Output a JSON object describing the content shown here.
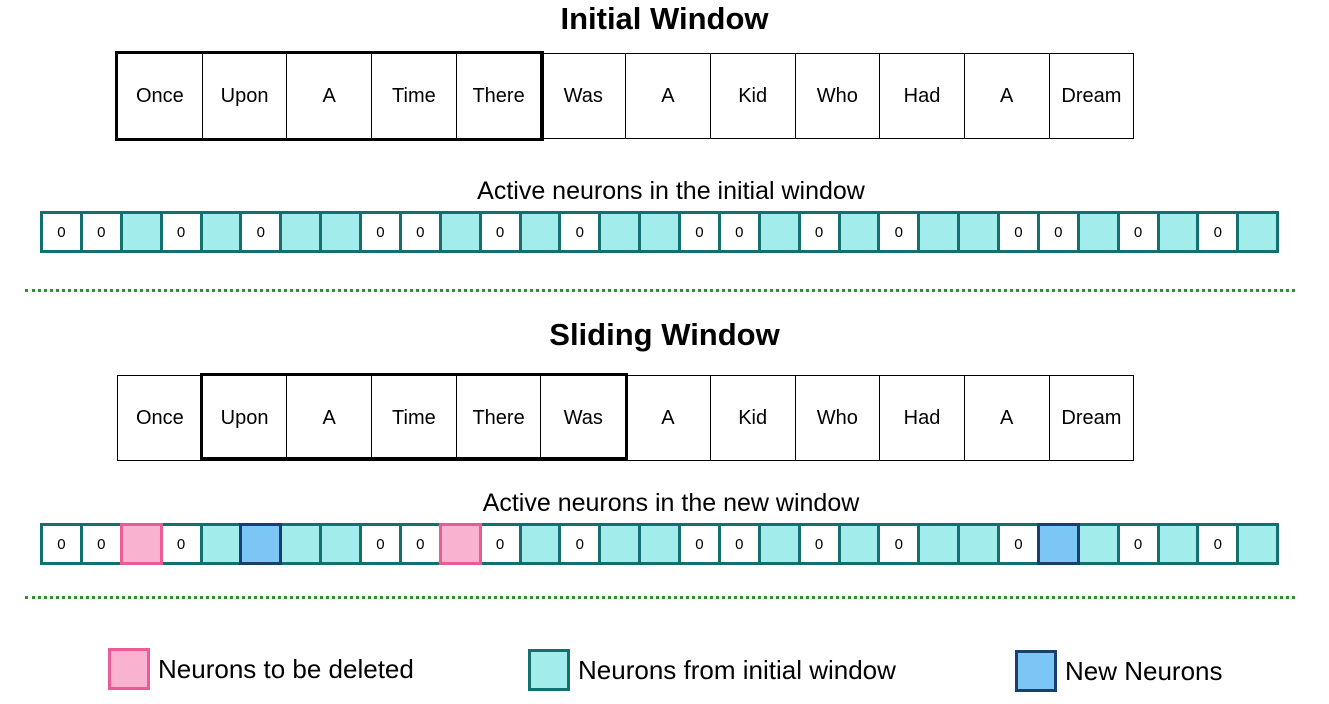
{
  "initial": {
    "title": "Initial Window",
    "words": [
      "Once",
      "Upon",
      "A",
      "Time",
      "There",
      "Was",
      "A",
      "Kid",
      "Who",
      "Had",
      "A",
      "Dream"
    ],
    "window_start": 0,
    "window_size": 5,
    "neurons_label": "Active neurons in the initial window",
    "neurons": [
      "0",
      "0",
      "A",
      "0",
      "A",
      "0",
      "A",
      "A",
      "0",
      "0",
      "A",
      "0",
      "A",
      "0",
      "A",
      "A",
      "0",
      "0",
      "A",
      "0",
      "A",
      "0",
      "A",
      "A",
      "0",
      "0",
      "A",
      "0",
      "A",
      "0",
      "A"
    ]
  },
  "sliding": {
    "title": "Sliding Window",
    "words": [
      "Once",
      "Upon",
      "A",
      "Time",
      "There",
      "Was",
      "A",
      "Kid",
      "Who",
      "Had",
      "A",
      "Dream"
    ],
    "window_start": 1,
    "window_size": 5,
    "neurons_label": "Active neurons in the new window",
    "neurons": [
      "0",
      "0",
      "D",
      "0",
      "A",
      "N",
      "A",
      "A",
      "0",
      "0",
      "D",
      "0",
      "A",
      "0",
      "A",
      "A",
      "0",
      "0",
      "A",
      "0",
      "A",
      "0",
      "A",
      "A",
      "0",
      "N",
      "A",
      "0",
      "A",
      "0",
      "A"
    ]
  },
  "legend": [
    {
      "label": "Neurons to be deleted",
      "fill": "#f9b3d0",
      "border": "#ea5c95",
      "icon": "deleted-neuron-swatch"
    },
    {
      "label": "Neurons from initial window",
      "fill": "#a3ecec",
      "border": "#137071",
      "icon": "initial-neuron-swatch"
    },
    {
      "label": "New Neurons",
      "fill": "#7cc6f6",
      "border": "#1a3f6e",
      "icon": "new-neuron-swatch"
    }
  ]
}
